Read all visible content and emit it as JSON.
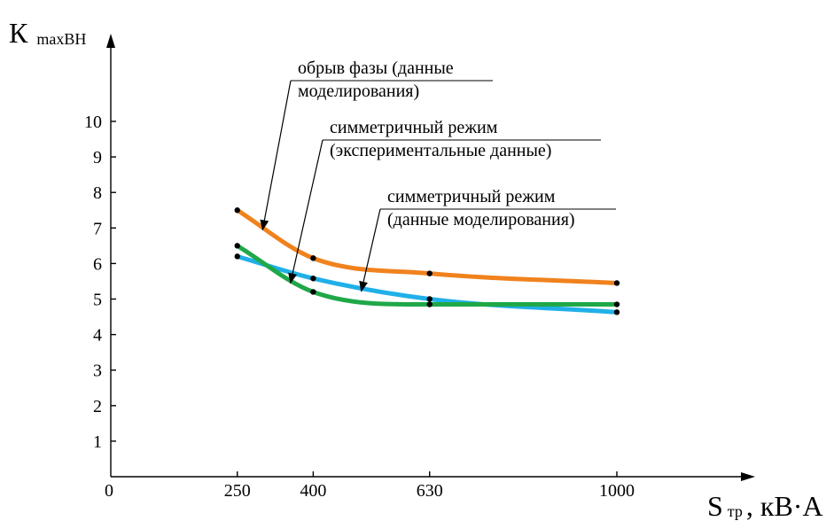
{
  "chart_data": {
    "type": "line",
    "x_tick_labels": [
      "0",
      "250",
      "400",
      "630",
      "1000"
    ],
    "y_tick_labels": [
      "1",
      "2",
      "3",
      "4",
      "5",
      "6",
      "7",
      "8",
      "9",
      "10"
    ],
    "xlim": [
      0,
      1000
    ],
    "ylim": [
      0,
      11
    ],
    "x_unit": {
      "main": "S",
      "sub": "тр",
      "rest": ", кВ·А"
    },
    "y_label": {
      "main": "К",
      "sub": "maxВН"
    },
    "grid": false,
    "series": [
      {
        "color": "#F0821E",
        "points": [
          [
            250,
            7.5
          ],
          [
            400,
            6.15
          ],
          [
            630,
            5.72
          ],
          [
            1000,
            5.45
          ]
        ]
      },
      {
        "color": "#1FB0E8",
        "points": [
          [
            250,
            6.2
          ],
          [
            400,
            5.58
          ],
          [
            630,
            5.0
          ],
          [
            1000,
            4.63
          ]
        ]
      },
      {
        "color": "#1FA848",
        "points": [
          [
            250,
            6.5
          ],
          [
            400,
            5.2
          ],
          [
            630,
            4.85
          ],
          [
            1000,
            4.85
          ]
        ]
      }
    ],
    "annotations": [
      {
        "lines": [
          "обрыв фазы (данные",
          "моделирования)"
        ],
        "target": [
          300,
          6.95
        ]
      },
      {
        "lines": [
          "симметричный режим",
          "(экспериментальные данные)"
        ],
        "target": [
          355,
          5.45
        ]
      },
      {
        "lines": [
          "симметричный режим",
          "(данные моделирования)"
        ],
        "target": [
          495,
          5.22
        ]
      }
    ]
  }
}
